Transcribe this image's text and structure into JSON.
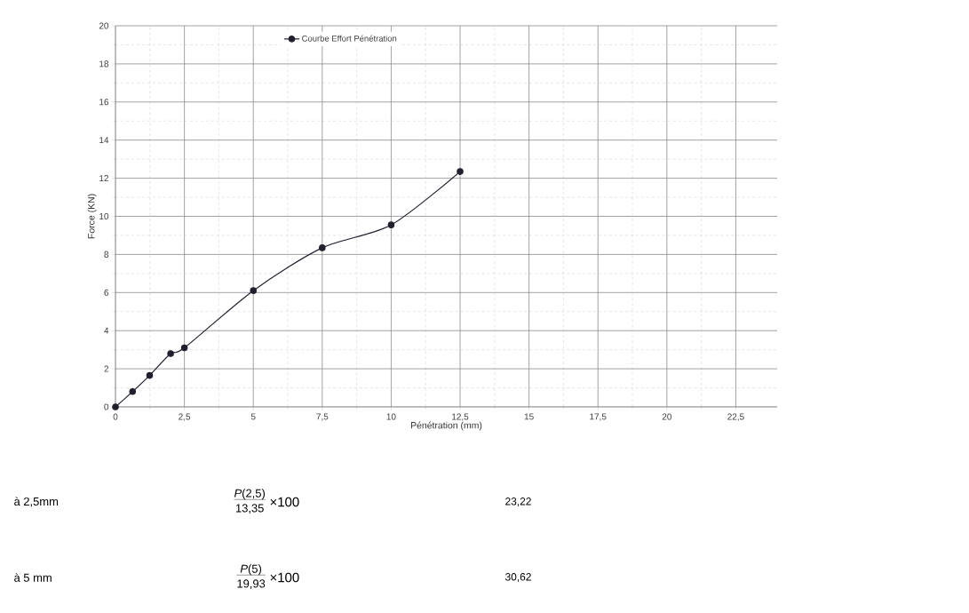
{
  "chart_data": {
    "type": "line",
    "xlabel": "Pénétration (mm)",
    "ylabel": "Force  (KN)",
    "x": [
      0,
      0.62,
      1.24,
      2,
      2.5,
      5,
      7.5,
      10,
      12.5
    ],
    "series": [
      {
        "name": "Courbe Effort Pénétration",
        "color": "#1f1f2e",
        "values": [
          0,
          0.8,
          1.65,
          2.8,
          3.1,
          6.1,
          8.35,
          9.55,
          12.35
        ]
      }
    ],
    "xlim": [
      0,
      24
    ],
    "ylim": [
      0,
      20
    ],
    "xticks": [
      0,
      {
        "value": 2.5,
        "label": "2,5"
      },
      5,
      {
        "value": 7.5,
        "label": "7,5"
      },
      10,
      {
        "value": 12.5,
        "label": "12,5"
      },
      15,
      {
        "value": 17.5,
        "label": "17,5"
      },
      20,
      {
        "value": 22.5,
        "label": "22,5"
      }
    ],
    "yticks": [
      0,
      2,
      4,
      6,
      8,
      10,
      12,
      14,
      16,
      18,
      20
    ],
    "grid": true,
    "legend": "top",
    "marker": "circle",
    "line_style": "solid",
    "annotations": [
      "à 2,5mm",
      "*P*(2,5)",
      "13,35",
      "×100",
      "23,22",
      "à 5 mm",
      "*P*(5)",
      "19,93",
      "×100",
      "30,62"
    ]
  }
}
